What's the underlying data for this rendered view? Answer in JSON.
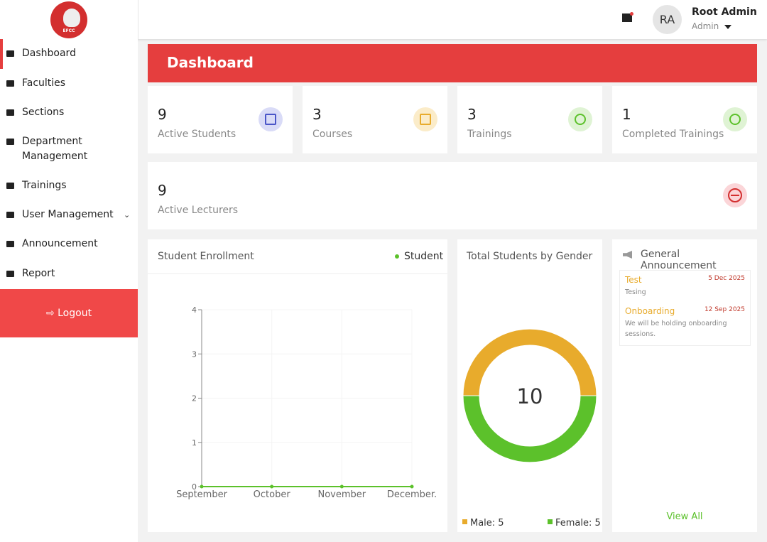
{
  "logo": "EFCC",
  "sidebar": {
    "menu": [
      "Dashboard",
      "Faculties",
      "Sections",
      "Department Management",
      "Trainings",
      "User Management",
      "Announcement",
      "Report"
    ],
    "logout": "Logout"
  },
  "header": {
    "avatar": "RA",
    "name": "Root Admin",
    "role": "Admin"
  },
  "dashboard": {
    "title": "Dashboard",
    "stats": [
      {
        "value": 9,
        "label": "Active Students"
      },
      {
        "value": 3,
        "label": "Courses"
      },
      {
        "value": 3,
        "label": "Trainings"
      },
      {
        "value": 1,
        "label": "Completed Trainings"
      }
    ],
    "lecturers": {
      "value": 9,
      "label": "Active Lecturers"
    }
  },
  "announcements": {
    "title": "General Announcement",
    "items": [
      {
        "title": "Test",
        "date": "5 Dec 2025",
        "body": "Tesing"
      },
      {
        "title": "Onboarding",
        "date": "12 Sep 2025",
        "body": "We will be holding onboarding sessions."
      }
    ],
    "view_all": "View All"
  },
  "chart_data": [
    {
      "type": "line",
      "title": "Student Enrollment",
      "categories": [
        "September",
        "October",
        "November",
        "December."
      ],
      "series": [
        {
          "name": "Student",
          "color": "#5cc12b",
          "values": [
            0,
            0,
            0,
            0
          ]
        }
      ],
      "ylim": [
        0,
        4
      ],
      "yticks": [
        0,
        1,
        2,
        3,
        4
      ]
    },
    {
      "type": "pie",
      "title": "Total Students by Gender",
      "categories": [
        "Male",
        "Female"
      ],
      "values": [
        5,
        5
      ],
      "value_labels": [
        "Male: 5",
        "Female: 5"
      ],
      "colors": [
        "#e8ab2c",
        "#5cc12b"
      ],
      "total": 10
    }
  ]
}
